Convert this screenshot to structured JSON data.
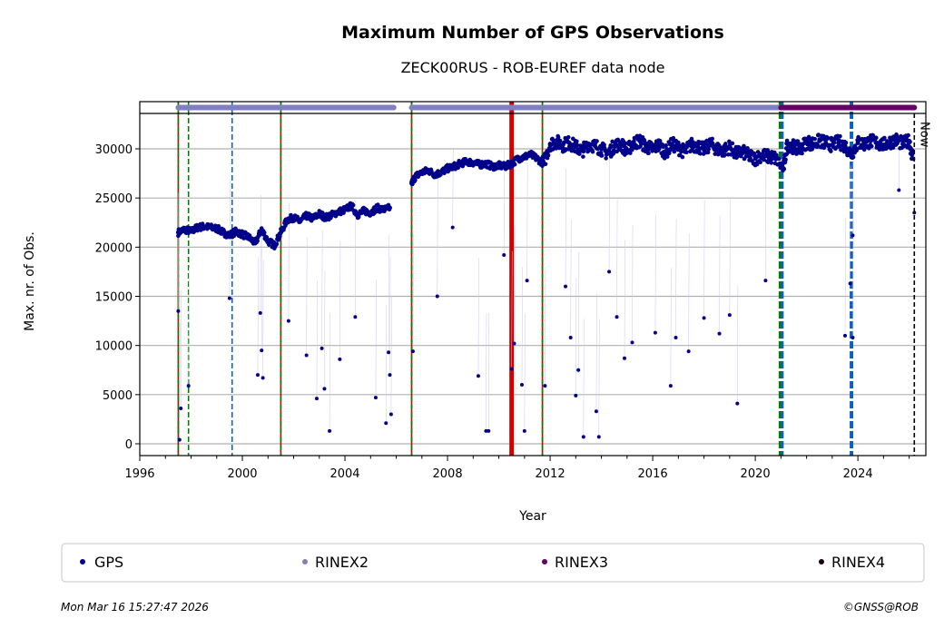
{
  "chart_data": {
    "type": "scatter",
    "title": "Maximum Number of GPS Observations",
    "subtitle": "ZECK00RUS - ROB-EUREF data node",
    "xlabel": "Year",
    "ylabel": "Max. nr. of Obs.",
    "xlim": [
      1996.0,
      2026.65
    ],
    "ylim": [
      -1200,
      33600
    ],
    "grid": "horizontal",
    "xticks": [
      1996,
      2000,
      2004,
      2008,
      2012,
      2016,
      2020,
      2024
    ],
    "xtick_labels": [
      "1996",
      "2000",
      "2004",
      "2008",
      "2012",
      "2016",
      "2020",
      "2024"
    ],
    "yticks": [
      0,
      5000,
      10000,
      15000,
      20000,
      25000,
      30000
    ],
    "ytick_labels": [
      "0",
      "5000",
      "10000",
      "15000",
      "20000",
      "25000",
      "30000"
    ],
    "colors": {
      "gps": "#00008b",
      "rinex2": "#8080c0",
      "rinex3": "#660066",
      "rinex4": "#1a0010"
    },
    "legend": {
      "placement": "bottom",
      "entries": [
        "GPS",
        "RINEX2",
        "RINEX3",
        "RINEX4"
      ]
    },
    "now_label": "Now",
    "now_year": 2026.2,
    "rinex_strips": [
      {
        "format": "RINEX2",
        "start": 1997.5,
        "end": 2005.9
      },
      {
        "format": "RINEX2",
        "start": 2006.6,
        "end": 2021.0
      },
      {
        "format": "RINEX3",
        "start": 2021.0,
        "end": 2026.2
      }
    ],
    "events": [
      {
        "year": 1997.5,
        "style": "red-green"
      },
      {
        "year": 1997.9,
        "style": "green-dashed"
      },
      {
        "year": 1999.6,
        "style": "blue-dashed"
      },
      {
        "year": 2001.5,
        "style": "red-green"
      },
      {
        "year": 2006.6,
        "style": "red-green"
      },
      {
        "year": 2010.5,
        "style": "red-thick"
      },
      {
        "year": 2011.7,
        "style": "red-green"
      },
      {
        "year": 2021.0,
        "style": "green-blue-thick"
      },
      {
        "year": 2023.75,
        "style": "blue-thick"
      }
    ],
    "gps_baseline": [
      [
        1997.5,
        21500
      ],
      [
        1997.75,
        21800
      ],
      [
        1998,
        21600
      ],
      [
        1998.25,
        22000
      ],
      [
        1998.5,
        22100
      ],
      [
        1998.75,
        22000
      ],
      [
        1999,
        21900
      ],
      [
        1999.25,
        21500
      ],
      [
        1999.5,
        21200
      ],
      [
        1999.75,
        21600
      ],
      [
        2000,
        21300
      ],
      [
        2000.25,
        21000
      ],
      [
        2000.5,
        20400
      ],
      [
        2000.75,
        21800
      ],
      [
        2001,
        20600
      ],
      [
        2001.25,
        20200
      ],
      [
        2001.5,
        21500
      ],
      [
        2001.75,
        22800
      ],
      [
        2002,
        23000
      ],
      [
        2002.25,
        22600
      ],
      [
        2002.5,
        23200
      ],
      [
        2002.75,
        22900
      ],
      [
        2003,
        23400
      ],
      [
        2003.25,
        23000
      ],
      [
        2003.5,
        23300
      ],
      [
        2003.75,
        23600
      ],
      [
        2004,
        23800
      ],
      [
        2004.25,
        24200
      ],
      [
        2004.5,
        23300
      ],
      [
        2004.75,
        23700
      ],
      [
        2005,
        23500
      ],
      [
        2005.25,
        24000
      ],
      [
        2005.5,
        23800
      ],
      [
        2005.75,
        24000
      ],
      [
        2006.6,
        26500
      ],
      [
        2006.75,
        27200
      ],
      [
        2007,
        27600
      ],
      [
        2007.25,
        27800
      ],
      [
        2007.5,
        27400
      ],
      [
        2007.75,
        27600
      ],
      [
        2008,
        28000
      ],
      [
        2008.25,
        28200
      ],
      [
        2008.5,
        28500
      ],
      [
        2008.75,
        28700
      ],
      [
        2009,
        28600
      ],
      [
        2009.25,
        28400
      ],
      [
        2009.5,
        28500
      ],
      [
        2009.75,
        28200
      ],
      [
        2010,
        28300
      ],
      [
        2010.25,
        28200
      ],
      [
        2010.5,
        28500
      ],
      [
        2010.75,
        29000
      ],
      [
        2011,
        29200
      ],
      [
        2011.25,
        29400
      ],
      [
        2011.5,
        29000
      ],
      [
        2011.75,
        28500
      ],
      [
        2012,
        30500
      ],
      [
        2012.25,
        30700
      ],
      [
        2012.5,
        30400
      ],
      [
        2012.75,
        30600
      ],
      [
        2013,
        30200
      ],
      [
        2013.25,
        29800
      ],
      [
        2013.5,
        30500
      ],
      [
        2013.75,
        30300
      ],
      [
        2014,
        30000
      ],
      [
        2014.25,
        29500
      ],
      [
        2014.5,
        30300
      ],
      [
        2014.75,
        30500
      ],
      [
        2015,
        29800
      ],
      [
        2015.25,
        30600
      ],
      [
        2015.5,
        30800
      ],
      [
        2015.75,
        30200
      ],
      [
        2016,
        30000
      ],
      [
        2016.25,
        30400
      ],
      [
        2016.5,
        29600
      ],
      [
        2016.75,
        30500
      ],
      [
        2017,
        30100
      ],
      [
        2017.25,
        29700
      ],
      [
        2017.5,
        30400
      ],
      [
        2017.75,
        30300
      ],
      [
        2018,
        29900
      ],
      [
        2018.25,
        30500
      ],
      [
        2018.5,
        30000
      ],
      [
        2018.75,
        29800
      ],
      [
        2019,
        30200
      ],
      [
        2019.25,
        29500
      ],
      [
        2019.5,
        29700
      ],
      [
        2019.75,
        29300
      ],
      [
        2020,
        29000
      ],
      [
        2020.25,
        29400
      ],
      [
        2020.5,
        29200
      ],
      [
        2020.75,
        29100
      ],
      [
        2021.1,
        28000
      ],
      [
        2021.25,
        30500
      ],
      [
        2021.5,
        30200
      ],
      [
        2021.75,
        30000
      ],
      [
        2022,
        30700
      ],
      [
        2022.25,
        30500
      ],
      [
        2022.5,
        30800
      ],
      [
        2022.75,
        30600
      ],
      [
        2023,
        30400
      ],
      [
        2023.25,
        30700
      ],
      [
        2023.5,
        30300
      ],
      [
        2023.75,
        29500
      ],
      [
        2024,
        30600
      ],
      [
        2024.25,
        30500
      ],
      [
        2024.5,
        30800
      ],
      [
        2024.75,
        30600
      ],
      [
        2025,
        30400
      ],
      [
        2025.25,
        30700
      ],
      [
        2025.5,
        30900
      ],
      [
        2025.75,
        30500
      ],
      [
        2026,
        30800
      ],
      [
        2026.15,
        29000
      ]
    ],
    "gps_outliers": [
      [
        1997.5,
        13500
      ],
      [
        1997.55,
        400
      ],
      [
        1997.6,
        3600
      ],
      [
        1997.9,
        5900
      ],
      [
        1999.5,
        14800
      ],
      [
        2000.6,
        7000
      ],
      [
        2000.8,
        6700
      ],
      [
        2000.7,
        13300
      ],
      [
        2000.75,
        9500
      ],
      [
        2001.8,
        12500
      ],
      [
        2002.5,
        9000
      ],
      [
        2002.9,
        4600
      ],
      [
        2003.1,
        9700
      ],
      [
        2003.2,
        5600
      ],
      [
        2003.4,
        1300
      ],
      [
        2003.8,
        8600
      ],
      [
        2004.4,
        12900
      ],
      [
        2005.2,
        4700
      ],
      [
        2005.6,
        2100
      ],
      [
        2005.8,
        3000
      ],
      [
        2005.75,
        7000
      ],
      [
        2005.7,
        9300
      ],
      [
        2006.65,
        9400
      ],
      [
        2007.6,
        15000
      ],
      [
        2008.2,
        22000
      ],
      [
        2009.2,
        6900
      ],
      [
        2009.5,
        1300
      ],
      [
        2009.6,
        1300
      ],
      [
        2010.2,
        19200
      ],
      [
        2010.5,
        7600
      ],
      [
        2010.6,
        10200
      ],
      [
        2010.9,
        6000
      ],
      [
        2011.0,
        1300
      ],
      [
        2011.1,
        16600
      ],
      [
        2011.8,
        5900
      ],
      [
        2012.6,
        16000
      ],
      [
        2012.8,
        10800
      ],
      [
        2013.0,
        4900
      ],
      [
        2013.1,
        7500
      ],
      [
        2013.3,
        700
      ],
      [
        2013.8,
        3300
      ],
      [
        2013.9,
        700
      ],
      [
        2014.3,
        17500
      ],
      [
        2014.6,
        12900
      ],
      [
        2014.9,
        8700
      ],
      [
        2015.2,
        10300
      ],
      [
        2016.1,
        11300
      ],
      [
        2016.7,
        5900
      ],
      [
        2016.9,
        10800
      ],
      [
        2017.4,
        9400
      ],
      [
        2018.0,
        12800
      ],
      [
        2018.6,
        11200
      ],
      [
        2019.0,
        13100
      ],
      [
        2019.3,
        4100
      ],
      [
        2020.4,
        16600
      ],
      [
        2023.5,
        11000
      ],
      [
        2023.7,
        16300
      ],
      [
        2023.8,
        10800
      ],
      [
        2023.8,
        21200
      ],
      [
        2025.6,
        25800
      ],
      [
        2026.2,
        23500
      ]
    ]
  },
  "footer": {
    "timestamp": "Mon Mar 16 15:27:47 2026",
    "copyright": "©GNSS@ROB"
  }
}
